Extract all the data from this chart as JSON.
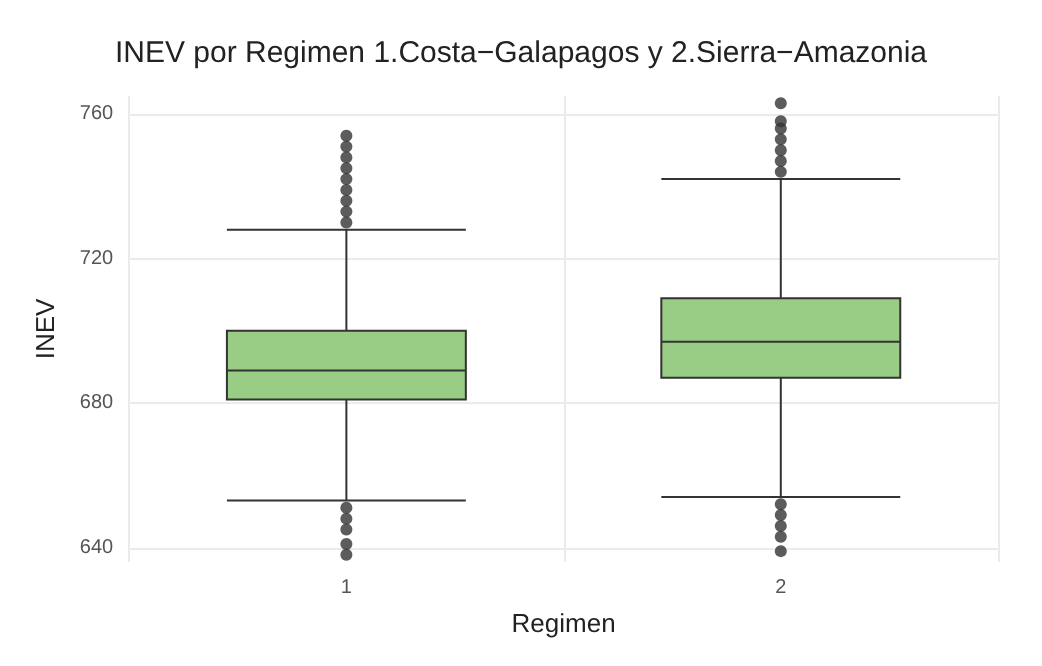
{
  "chart_data": {
    "type": "box",
    "title": "INEV por Regimen 1.Costa−Galapagos y 2.Sierra−Amazonia",
    "xlabel": "Regimen",
    "ylabel": "INEV",
    "categories": [
      "1",
      "2"
    ],
    "color": "#99cc85",
    "boxes": [
      {
        "low": 653,
        "q1": 681,
        "median": 689,
        "q3": 700,
        "high": 728,
        "outliers": [
          730,
          733,
          736,
          739,
          742,
          745,
          748,
          751,
          754,
          651,
          648,
          645,
          641,
          638
        ]
      },
      {
        "low": 654,
        "q1": 687,
        "median": 697,
        "q3": 709,
        "high": 742,
        "outliers": [
          744,
          747,
          750,
          753,
          756,
          758,
          763,
          652,
          649,
          646,
          643,
          639
        ]
      }
    ],
    "ylim": [
      636,
      765
    ],
    "yticks": [
      640,
      680,
      720,
      760
    ],
    "grid": true
  }
}
